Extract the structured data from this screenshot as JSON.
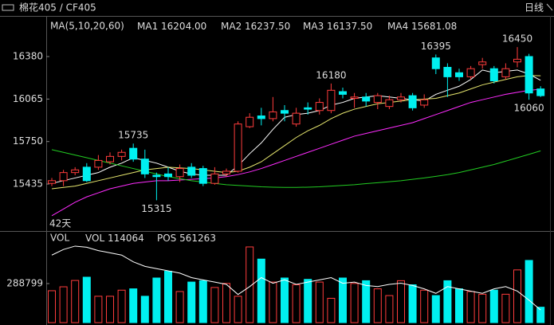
{
  "header": {
    "title": "棉花405 / CF405",
    "period": "日线"
  },
  "chart_data": [
    {
      "type": "candlestick",
      "legend_title": "MA(5,10,20,60)",
      "period_label": "42天",
      "up_color": "#ff3c3c",
      "down_color": "#00f0f0",
      "ylim": [
        15087,
        16681
      ],
      "yticks": [
        15435,
        15750,
        16065,
        16380
      ],
      "open": [
        15440,
        15460,
        15520,
        15560,
        15560,
        15600,
        15640,
        15700,
        15620,
        15500,
        15510,
        15490,
        15560,
        15550,
        15440,
        15510,
        15530,
        15860,
        15940,
        15920,
        15980,
        15880,
        16000,
        15980,
        15980,
        16120,
        16070,
        16080,
        16040,
        16010,
        16060,
        16090,
        16020,
        16370,
        16300,
        16260,
        16230,
        16320,
        16290,
        16230,
        16340,
        16380,
        16140
      ],
      "high": [
        15480,
        15540,
        15560,
        15590,
        15650,
        15670,
        15690,
        15735,
        15690,
        15520,
        15560,
        15580,
        15590,
        15570,
        15560,
        15550,
        15900,
        15960,
        16000,
        16080,
        16020,
        16000,
        16040,
        16070,
        16180,
        16150,
        16110,
        16110,
        16110,
        16090,
        16110,
        16110,
        16100,
        16395,
        16330,
        16290,
        16310,
        16370,
        16310,
        16330,
        16450,
        16400,
        16160
      ],
      "low": [
        15420,
        15420,
        15500,
        15450,
        15540,
        15580,
        15610,
        15600,
        15480,
        15315,
        15460,
        15450,
        15480,
        15420,
        15430,
        15490,
        15520,
        15850,
        15870,
        15900,
        15900,
        15860,
        15950,
        15950,
        15960,
        16070,
        16000,
        16010,
        15990,
        15990,
        16040,
        15980,
        16000,
        16250,
        16080,
        16200,
        16210,
        16290,
        16180,
        16210,
        16300,
        16060,
        16080
      ],
      "close": [
        15460,
        15520,
        15540,
        15460,
        15610,
        15640,
        15670,
        15620,
        15510,
        15490,
        15490,
        15550,
        15500,
        15440,
        15510,
        15530,
        15880,
        15930,
        15920,
        15970,
        15960,
        15960,
        15990,
        16040,
        16130,
        16100,
        16080,
        16050,
        16090,
        16060,
        16080,
        16000,
        16060,
        16290,
        16230,
        16230,
        16290,
        16340,
        16200,
        16290,
        16360,
        16110,
        16090
      ],
      "annotations": [
        15735,
        15315,
        16180,
        16395,
        16450,
        16060
      ],
      "series": [
        {
          "name": "MA1",
          "color": "#ffffff",
          "value_label": "16204.00",
          "values": [
            15440,
            15460,
            15480,
            15500,
            15520,
            15560,
            15590,
            15630,
            15610,
            15590,
            15560,
            15530,
            15510,
            15500,
            15500,
            15500,
            15570,
            15660,
            15740,
            15840,
            15930,
            15950,
            15960,
            15980,
            16020,
            16040,
            16070,
            16080,
            16090,
            16080,
            16070,
            16060,
            16050,
            16100,
            16130,
            16160,
            16210,
            16280,
            16260,
            16270,
            16280,
            16250,
            16204
          ]
        },
        {
          "name": "MA2",
          "color": "#e6e66e",
          "value_label": "16237.50",
          "values": [
            15400,
            15410,
            15420,
            15440,
            15460,
            15480,
            15500,
            15520,
            15540,
            15550,
            15560,
            15555,
            15550,
            15540,
            15530,
            15520,
            15530,
            15560,
            15600,
            15660,
            15720,
            15780,
            15830,
            15870,
            15920,
            15960,
            15990,
            16010,
            16030,
            16040,
            16050,
            16060,
            16065,
            16070,
            16090,
            16110,
            16140,
            16170,
            16190,
            16210,
            16230,
            16240,
            16237.5
          ]
        },
        {
          "name": "MA3",
          "color": "#ff2cff",
          "value_label": "16137.50",
          "values": [
            15200,
            15250,
            15300,
            15340,
            15370,
            15400,
            15420,
            15440,
            15450,
            15460,
            15460,
            15465,
            15470,
            15475,
            15480,
            15490,
            15505,
            15525,
            15550,
            15580,
            15610,
            15640,
            15670,
            15700,
            15730,
            15760,
            15790,
            15810,
            15830,
            15850,
            15870,
            15890,
            15920,
            15950,
            15980,
            16010,
            16040,
            16060,
            16080,
            16100,
            16115,
            16130,
            16137.5
          ]
        },
        {
          "name": "MA4",
          "color": "#22cc22",
          "value_label": "15681.08",
          "values": [
            15690,
            15670,
            15650,
            15630,
            15610,
            15590,
            15570,
            15550,
            15530,
            15510,
            15490,
            15475,
            15460,
            15450,
            15440,
            15430,
            15425,
            15420,
            15415,
            15412,
            15410,
            15410,
            15412,
            15415,
            15420,
            15425,
            15430,
            15438,
            15445,
            15452,
            15460,
            15470,
            15480,
            15492,
            15505,
            15520,
            15540,
            15560,
            15580,
            15605,
            15630,
            15655,
            15681.08
          ]
        }
      ]
    },
    {
      "type": "bar",
      "title": "VOL",
      "ylim": [
        0,
        666000
      ],
      "yticks": [
        288799
      ],
      "y2lim": [
        550000,
        630000
      ],
      "series": [
        {
          "name": "VOL",
          "color": "#00f0f0",
          "values": [
            236000,
            265000,
            312000,
            336000,
            195000,
            195000,
            240000,
            250000,
            195000,
            330000,
            380000,
            230000,
            300000,
            310000,
            260000,
            290000,
            195000,
            560000,
            470000,
            300000,
            330000,
            280000,
            320000,
            300000,
            180000,
            330000,
            290000,
            310000,
            250000,
            200000,
            310000,
            280000,
            240000,
            200000,
            310000,
            250000,
            230000,
            210000,
            240000,
            210000,
            390000,
            460000,
            114064
          ]
        },
        {
          "name": "POS",
          "color": "#ffffff",
          "axis": "y2",
          "values": [
            610000,
            615000,
            618000,
            617000,
            614000,
            612000,
            610000,
            604000,
            600000,
            598000,
            596000,
            594000,
            590000,
            588000,
            586000,
            584000,
            575000,
            582000,
            590000,
            585000,
            588000,
            584000,
            586000,
            588000,
            590000,
            585000,
            586000,
            583000,
            582000,
            584000,
            585000,
            583000,
            580000,
            576000,
            582000,
            580000,
            578000,
            576000,
            580000,
            582000,
            578000,
            570000,
            561263
          ]
        }
      ]
    }
  ]
}
